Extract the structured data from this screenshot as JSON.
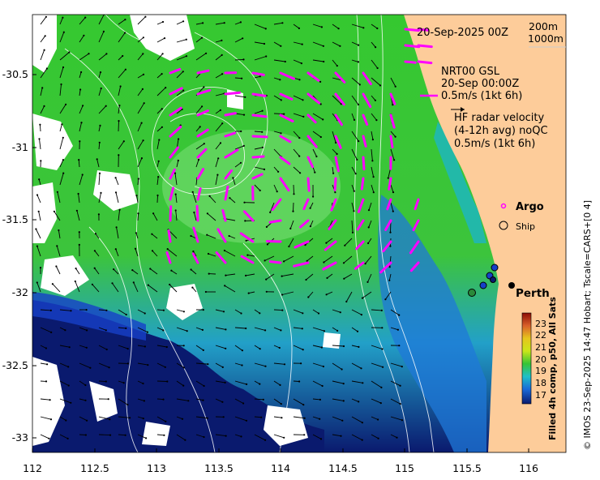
{
  "map": {
    "date_label": "20-Sep-2025 00Z",
    "contour_legend": [
      "200m",
      "1000m"
    ],
    "product": {
      "line1": "NRT00 GSL",
      "line2": "20-Sep 00:00Z",
      "line3": "0.5m/s (1kt 6h)"
    },
    "hf_radar": {
      "line1": "HF radar velocity",
      "line2": "(4-12h avg) noQC",
      "line3": "0.5m/s (1kt 6h)"
    },
    "markers": {
      "argo": "Argo",
      "ship": "Ship",
      "city": "Perth"
    },
    "colorbar": {
      "ticks": [
        "23",
        "22",
        "21",
        "20",
        "19",
        "18",
        "17"
      ],
      "caption": "Filled 4h comp, p50, All Sats",
      "colors": [
        "#9b1b0b",
        "#d9602a",
        "#e6c61c",
        "#c9e619",
        "#35c435",
        "#1fa0d8",
        "#1530c8",
        "#0a1a6e"
      ]
    },
    "credit": "© IMOS 23-Sep-2025 14:47 Hobart; Tscale=CARS+[0 4]",
    "x_ticks": [
      "112",
      "112.5",
      "113",
      "113.5",
      "114",
      "114.5",
      "115",
      "115.5",
      "116"
    ],
    "y_ticks": [
      "-30.5",
      "-31",
      "-31.5",
      "-32",
      "-32.5",
      "-33"
    ],
    "colors": {
      "land": "#fdcc9a",
      "ocean_green": "#3cc43c",
      "ocean_deep": "#0a1a6e",
      "cloud": "#ffffff",
      "gsl_arrow": "#ff00ff",
      "current_arrow": "#000000"
    }
  }
}
